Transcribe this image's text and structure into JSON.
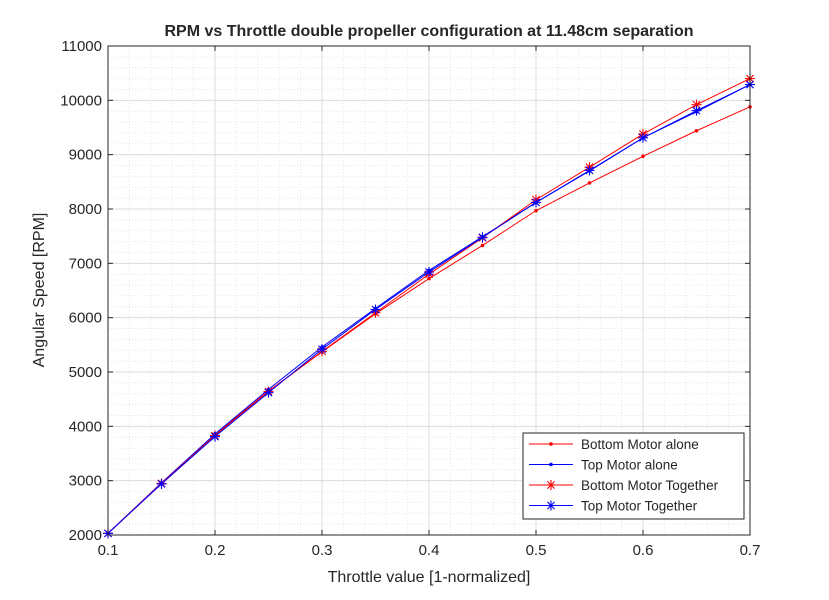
{
  "chart_data": {
    "type": "line",
    "title": "RPM vs Throttle double propeller configuration at 11.48cm separation",
    "xlabel": "Throttle value [1-normalized]",
    "ylabel": "Angular Speed [RPM]",
    "xlim": [
      0.1,
      0.7
    ],
    "ylim": [
      2000,
      11000
    ],
    "xticks": [
      0.1,
      0.2,
      0.3,
      0.4,
      0.5,
      0.6,
      0.7
    ],
    "xtick_labels": [
      "0.1",
      "0.2",
      "0.3",
      "0.4",
      "0.5",
      "0.6",
      "0.7"
    ],
    "yticks": [
      2000,
      3000,
      4000,
      5000,
      6000,
      7000,
      8000,
      9000,
      10000,
      11000
    ],
    "ytick_labels": [
      "2000",
      "3000",
      "4000",
      "5000",
      "6000",
      "7000",
      "8000",
      "9000",
      "10000",
      "11000"
    ],
    "grid": true,
    "minor_grid": true,
    "legend_position": "bottom-right",
    "x": [
      0.1,
      0.15,
      0.2,
      0.25,
      0.3,
      0.35,
      0.4,
      0.45,
      0.5,
      0.55,
      0.6,
      0.65,
      0.7
    ],
    "series": [
      {
        "name": "Bottom Motor alone",
        "color": "#ff0000",
        "marker": "dot",
        "values": [
          2030,
          2960,
          3850,
          4650,
          5370,
          6070,
          6720,
          7330,
          7970,
          8480,
          8970,
          9440,
          9880
        ]
      },
      {
        "name": "Top Motor alone",
        "color": "#0000ff",
        "marker": "dot",
        "values": [
          2030,
          2960,
          3860,
          4680,
          5460,
          6170,
          6870,
          7490,
          8120,
          8700,
          9310,
          9790,
          10290
        ]
      },
      {
        "name": "Bottom Motor Together",
        "color": "#ff0000",
        "marker": "asterisk",
        "values": [
          2030,
          2950,
          3830,
          4640,
          5380,
          6090,
          6800,
          7470,
          8170,
          8770,
          9380,
          9920,
          10400
        ]
      },
      {
        "name": "Top Motor Together",
        "color": "#0000ff",
        "marker": "asterisk",
        "values": [
          2030,
          2940,
          3810,
          4620,
          5420,
          6150,
          6840,
          7480,
          8120,
          8710,
          9310,
          9810,
          10290
        ]
      }
    ]
  }
}
